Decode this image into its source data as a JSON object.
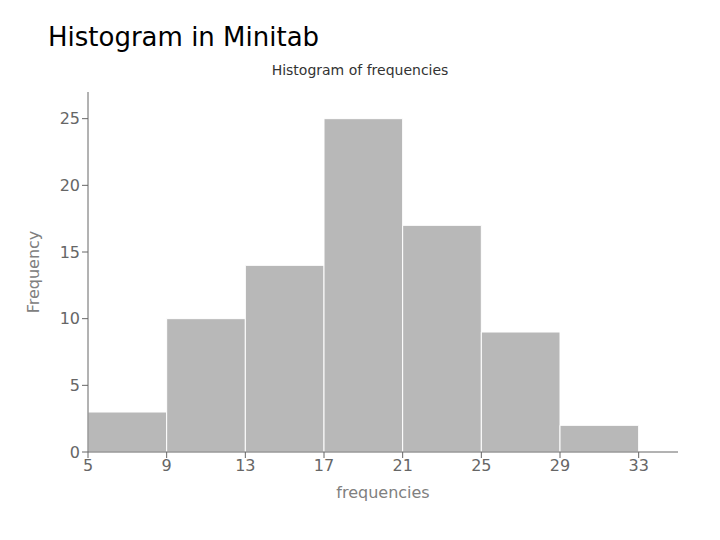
{
  "chart_data": {
    "type": "histogram",
    "title": "Histogram in Minitab",
    "subtitle": "Histogram of frequencies",
    "x_label": "frequencies",
    "y_label": "Frequency",
    "bins": [
      5,
      9,
      13,
      17,
      21,
      25,
      29,
      33
    ],
    "values": [
      3,
      10,
      14,
      25,
      17,
      9,
      2
    ],
    "color": "#b8b8b8",
    "xlim": [
      5,
      35
    ],
    "xticks": [
      5,
      9,
      13,
      17,
      21,
      25,
      29,
      33
    ],
    "ylim": [
      0,
      27
    ],
    "yticks": [
      0,
      5,
      10,
      15,
      20,
      25
    ],
    "grid": false
  }
}
